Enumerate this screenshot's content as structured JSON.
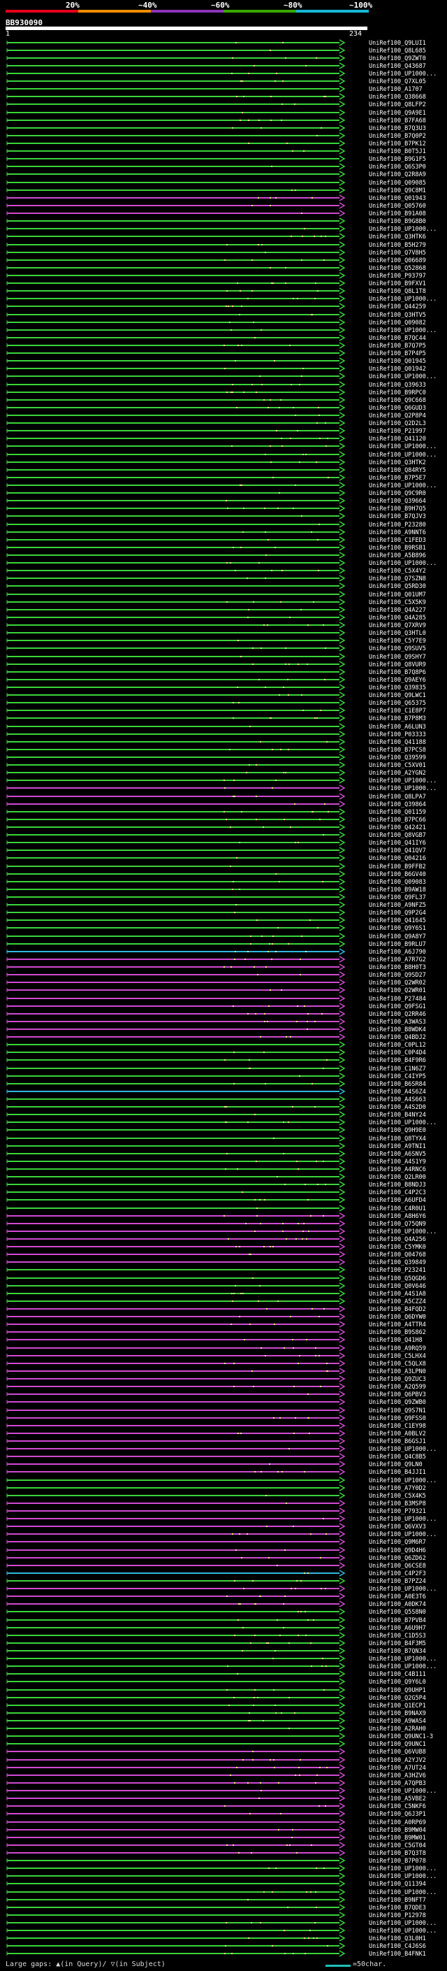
{
  "header": {
    "legend": [
      {
        "label": "20%",
        "color": "#e4001a"
      },
      {
        "label": "~40%",
        "color": "#f08c00"
      },
      {
        "label": "~60%",
        "color": "#8c34b8"
      },
      {
        "label": "~80%",
        "color": "#38a800"
      },
      {
        "label": "~100%",
        "color": "#18b8d8"
      }
    ],
    "query_id": "BB930090",
    "start_pos": "1",
    "end_pos": "234"
  },
  "chart_data": {
    "type": "alignment",
    "title": "BB930090",
    "query_range": [
      1,
      234
    ],
    "series_colors": {
      "green": "#3bd43b",
      "purple": "#d04ad0",
      "cyan": "#30b8e0"
    },
    "hits": [
      {
        "id": "UniRef100_Q9LUI1",
        "color": "green"
      },
      {
        "id": "UniRef100_Q8L685",
        "color": "green"
      },
      {
        "id": "UniRef100_Q9ZWT0",
        "color": "green"
      },
      {
        "id": "UniRef100_Q43687",
        "color": "green"
      },
      {
        "id": "UniRef100_UP1000...",
        "color": "green"
      },
      {
        "id": "UniRef100_Q7XL05",
        "color": "green"
      },
      {
        "id": "UniRef100_A1707",
        "color": "green"
      },
      {
        "id": "UniRef100_Q38668",
        "color": "green"
      },
      {
        "id": "UniRef100_Q8LFP2",
        "color": "green"
      },
      {
        "id": "UniRef100_Q9A9E1",
        "color": "green"
      },
      {
        "id": "UniRef100_B7FA68",
        "color": "green"
      },
      {
        "id": "UniRef100_B7Q3U3",
        "color": "green"
      },
      {
        "id": "UniRef100_B7Q0P2",
        "color": "green"
      },
      {
        "id": "UniRef100_B7PK12",
        "color": "green"
      },
      {
        "id": "UniRef100_B0T5J1",
        "color": "green"
      },
      {
        "id": "UniRef100_B9G1F5",
        "color": "green"
      },
      {
        "id": "UniRef100_Q6S3P0",
        "color": "green"
      },
      {
        "id": "UniRef100_Q2R8A9",
        "color": "green"
      },
      {
        "id": "UniRef100_Q09085",
        "color": "green"
      },
      {
        "id": "UniRef100_Q9C8M1",
        "color": "green"
      },
      {
        "id": "UniRef100_Q01943",
        "color": "purple"
      },
      {
        "id": "UniRef100_Q05760",
        "color": "purple"
      },
      {
        "id": "UniRef100_B91A08",
        "color": "purple"
      },
      {
        "id": "UniRef100_B9G8B0",
        "color": "green"
      },
      {
        "id": "UniRef100_UP1000...",
        "color": "green"
      },
      {
        "id": "UniRef100_Q3HTK6",
        "color": "green"
      },
      {
        "id": "UniRef100_B5H279",
        "color": "green"
      },
      {
        "id": "UniRef100_Q7V8H5",
        "color": "green"
      },
      {
        "id": "UniRef100_Q06689",
        "color": "green"
      },
      {
        "id": "UniRef100_Q52868",
        "color": "green"
      },
      {
        "id": "UniRef100_P93797",
        "color": "green"
      },
      {
        "id": "UniRef100_B9FXV1",
        "color": "green"
      },
      {
        "id": "UniRef100_Q8L1T8",
        "color": "green"
      },
      {
        "id": "UniRef100_UP1000...",
        "color": "green"
      },
      {
        "id": "UniRef100_Q44259",
        "color": "green"
      },
      {
        "id": "UniRef100_Q3HTV5",
        "color": "green"
      },
      {
        "id": "UniRef100_Q09082",
        "color": "green"
      },
      {
        "id": "UniRef100_UP1000...",
        "color": "green"
      },
      {
        "id": "UniRef100_B7QC44",
        "color": "green"
      },
      {
        "id": "UniRef100_B7Q7P5",
        "color": "green"
      },
      {
        "id": "UniRef100_B7P4P5",
        "color": "green"
      },
      {
        "id": "UniRef100_Q01945",
        "color": "green"
      },
      {
        "id": "UniRef100_Q01942",
        "color": "green"
      },
      {
        "id": "UniRef100_UP1000...",
        "color": "green"
      },
      {
        "id": "UniRef100_Q39633",
        "color": "green"
      },
      {
        "id": "UniRef100_B9RPC0",
        "color": "green"
      },
      {
        "id": "UniRef100_Q9C668",
        "color": "green"
      },
      {
        "id": "UniRef100_Q6GUD3",
        "color": "green"
      },
      {
        "id": "UniRef100_Q2P8P4",
        "color": "green"
      },
      {
        "id": "UniRef100_Q2D2L3",
        "color": "green"
      },
      {
        "id": "UniRef100_P21997",
        "color": "green"
      },
      {
        "id": "UniRef100_Q41120",
        "color": "green"
      },
      {
        "id": "UniRef100_UP1000...",
        "color": "green"
      },
      {
        "id": "UniRef100_UP1000...",
        "color": "green"
      },
      {
        "id": "UniRef100_Q3HTK2",
        "color": "green"
      },
      {
        "id": "UniRef100_Q84RY5",
        "color": "green"
      },
      {
        "id": "UniRef100_B7P5E7",
        "color": "green"
      },
      {
        "id": "UniRef100_UP1000...",
        "color": "green"
      },
      {
        "id": "UniRef100_Q9C9R0",
        "color": "green"
      },
      {
        "id": "UniRef100_Q39664",
        "color": "green"
      },
      {
        "id": "UniRef100_B9H7Q5",
        "color": "green"
      },
      {
        "id": "UniRef100_B7QJV3",
        "color": "green"
      },
      {
        "id": "UniRef100_P23280",
        "color": "green"
      },
      {
        "id": "UniRef100_A9NNT6",
        "color": "green"
      },
      {
        "id": "UniRef100_C1FED3",
        "color": "green"
      },
      {
        "id": "UniRef100_B9RSB1",
        "color": "green"
      },
      {
        "id": "UniRef100_A5B896",
        "color": "green"
      },
      {
        "id": "UniRef100_UP1000...",
        "color": "green"
      },
      {
        "id": "UniRef100_C5X4Y2",
        "color": "green"
      },
      {
        "id": "UniRef100_Q7SZN8",
        "color": "green"
      },
      {
        "id": "UniRef100_Q5RD30",
        "color": "green"
      },
      {
        "id": "UniRef100_Q01UM7",
        "color": "green"
      },
      {
        "id": "UniRef100_C5X5K9",
        "color": "green"
      },
      {
        "id": "UniRef100_Q4A227",
        "color": "green"
      },
      {
        "id": "UniRef100_Q4A285",
        "color": "green"
      },
      {
        "id": "UniRef100_Q7XRV9",
        "color": "green"
      },
      {
        "id": "UniRef100_Q3HTL0",
        "color": "green"
      },
      {
        "id": "UniRef100_C5Y7E9",
        "color": "green"
      },
      {
        "id": "UniRef100_Q9SUV5",
        "color": "green"
      },
      {
        "id": "UniRef100_Q9SHY7",
        "color": "green"
      },
      {
        "id": "UniRef100_Q8VUR9",
        "color": "green"
      },
      {
        "id": "UniRef100_B7Q8P6",
        "color": "green"
      },
      {
        "id": "UniRef100_Q9AEY6",
        "color": "green"
      },
      {
        "id": "UniRef100_Q39835",
        "color": "green"
      },
      {
        "id": "UniRef100_Q9LWC1",
        "color": "green"
      },
      {
        "id": "UniRef100_Q65375",
        "color": "green"
      },
      {
        "id": "UniRef100_C1E8P7",
        "color": "green"
      },
      {
        "id": "UniRef100_B7P8M3",
        "color": "green"
      },
      {
        "id": "UniRef100_A6LUN3",
        "color": "green"
      },
      {
        "id": "UniRef100_P03333",
        "color": "green"
      },
      {
        "id": "UniRef100_Q41188",
        "color": "green"
      },
      {
        "id": "UniRef100_B7PCS8",
        "color": "green"
      },
      {
        "id": "UniRef100_Q39599",
        "color": "green"
      },
      {
        "id": "UniRef100_C5XV01",
        "color": "green"
      },
      {
        "id": "UniRef100_A2YGN2",
        "color": "green"
      },
      {
        "id": "UniRef100_UP1000...",
        "color": "green"
      },
      {
        "id": "UniRef100_UP1000...",
        "color": "purple"
      },
      {
        "id": "UniRef100_Q8LPA7",
        "color": "purple"
      },
      {
        "id": "UniRef100_Q39864",
        "color": "purple"
      },
      {
        "id": "UniRef100_Q01159",
        "color": "green"
      },
      {
        "id": "UniRef100_B7PC66",
        "color": "green"
      },
      {
        "id": "UniRef100_Q42421",
        "color": "green"
      },
      {
        "id": "UniRef100_Q8VGB7",
        "color": "green"
      },
      {
        "id": "UniRef100_Q41IY6",
        "color": "green"
      },
      {
        "id": "UniRef100_Q41QV7",
        "color": "green"
      },
      {
        "id": "UniRef100_Q04216",
        "color": "green"
      },
      {
        "id": "UniRef100_B9FFB2",
        "color": "green"
      },
      {
        "id": "UniRef100_B6GV40",
        "color": "green"
      },
      {
        "id": "UniRef100_Q09083",
        "color": "green"
      },
      {
        "id": "UniRef100_B9AW18",
        "color": "green"
      },
      {
        "id": "UniRef100_Q9FL37",
        "color": "green"
      },
      {
        "id": "UniRef100_A9NFZ5",
        "color": "green"
      },
      {
        "id": "UniRef100_Q9P2G4",
        "color": "green"
      },
      {
        "id": "UniRef100_Q41645",
        "color": "green"
      },
      {
        "id": "UniRef100_Q9Y6S1",
        "color": "green"
      },
      {
        "id": "UniRef100_Q9A8Y7",
        "color": "green"
      },
      {
        "id": "UniRef100_B9RLU7",
        "color": "green"
      },
      {
        "id": "UniRef100_A6J790",
        "color": "cyan"
      },
      {
        "id": "UniRef100_A7R7G2",
        "color": "purple"
      },
      {
        "id": "UniRef100_B8H0T3",
        "color": "purple"
      },
      {
        "id": "UniRef100_Q9SD27",
        "color": "purple"
      },
      {
        "id": "UniRef100_Q2WR02",
        "color": "purple"
      },
      {
        "id": "UniRef100_Q2WR01",
        "color": "purple"
      },
      {
        "id": "UniRef100_P27484",
        "color": "purple"
      },
      {
        "id": "UniRef100_Q9FSG1",
        "color": "purple"
      },
      {
        "id": "UniRef100_Q2RR46",
        "color": "purple"
      },
      {
        "id": "UniRef100_A3WAS3",
        "color": "purple"
      },
      {
        "id": "UniRef100_B8WDK4",
        "color": "purple"
      },
      {
        "id": "UniRef100_Q4BDJ2",
        "color": "purple"
      },
      {
        "id": "UniRef100_C0PL12",
        "color": "green"
      },
      {
        "id": "UniRef100_C0P4D4",
        "color": "green"
      },
      {
        "id": "UniRef100_B4F9R6",
        "color": "green"
      },
      {
        "id": "UniRef100_C1N6Z7",
        "color": "green"
      },
      {
        "id": "UniRef100_C4IYP5",
        "color": "green"
      },
      {
        "id": "UniRef100_B6SR84",
        "color": "green"
      },
      {
        "id": "UniRef100_A4S6Z4",
        "color": "cyan"
      },
      {
        "id": "UniRef100_A4S663",
        "color": "green"
      },
      {
        "id": "UniRef100_A4S2D0",
        "color": "green"
      },
      {
        "id": "UniRef100_B4NY24",
        "color": "green"
      },
      {
        "id": "UniRef100_UP1000...",
        "color": "green"
      },
      {
        "id": "UniRef100_Q9H9E0",
        "color": "green"
      },
      {
        "id": "UniRef100_Q8TYX4",
        "color": "green"
      },
      {
        "id": "UniRef100_A9TNI1",
        "color": "green"
      },
      {
        "id": "UniRef100_A6SNV5",
        "color": "green"
      },
      {
        "id": "UniRef100_A4S1Y9",
        "color": "green"
      },
      {
        "id": "UniRef100_A4RNC6",
        "color": "green"
      },
      {
        "id": "UniRef100_Q2LR00",
        "color": "green"
      },
      {
        "id": "UniRef100_B8NDJ3",
        "color": "green"
      },
      {
        "id": "UniRef100_C4P2C3",
        "color": "green"
      },
      {
        "id": "UniRef100_A6UFD4",
        "color": "green"
      },
      {
        "id": "UniRef100_C4R0U1",
        "color": "green"
      },
      {
        "id": "UniRef100_A8H6Y6",
        "color": "purple"
      },
      {
        "id": "UniRef100_Q75QN9",
        "color": "purple"
      },
      {
        "id": "UniRef100_UP1000...",
        "color": "purple"
      },
      {
        "id": "UniRef100_Q4A256",
        "color": "purple"
      },
      {
        "id": "UniRef100_C5YMK0",
        "color": "purple"
      },
      {
        "id": "UniRef100_Q04768",
        "color": "purple"
      },
      {
        "id": "UniRef100_Q39849",
        "color": "purple"
      },
      {
        "id": "UniRef100_P23241",
        "color": "green"
      },
      {
        "id": "UniRef100_Q5QGD6",
        "color": "green"
      },
      {
        "id": "UniRef100_Q0V646",
        "color": "green"
      },
      {
        "id": "UniRef100_A4S1A8",
        "color": "green"
      },
      {
        "id": "UniRef100_A5CZZ4",
        "color": "green"
      },
      {
        "id": "UniRef100_B4FQD2",
        "color": "purple"
      },
      {
        "id": "UniRef100_Q6DYW0",
        "color": "purple"
      },
      {
        "id": "UniRef100_A4TTR4",
        "color": "purple"
      },
      {
        "id": "UniRef100_B9S862",
        "color": "purple"
      },
      {
        "id": "UniRef100_Q41H8",
        "color": "purple"
      },
      {
        "id": "UniRef100_A9RQ59",
        "color": "purple"
      },
      {
        "id": "UniRef100_C5LHX4",
        "color": "purple"
      },
      {
        "id": "UniRef100_C5QLX8",
        "color": "purple"
      },
      {
        "id": "UniRef100_A3LPN0",
        "color": "purple"
      },
      {
        "id": "UniRef100_Q9ZUC3",
        "color": "purple"
      },
      {
        "id": "UniRef100_A2Q599",
        "color": "purple"
      },
      {
        "id": "UniRef100_Q6PBV3",
        "color": "purple"
      },
      {
        "id": "UniRef100_Q9ZWB0",
        "color": "purple"
      },
      {
        "id": "UniRef100_Q9S7N1",
        "color": "purple"
      },
      {
        "id": "UniRef100_Q9FSS0",
        "color": "purple"
      },
      {
        "id": "UniRef100_C1EY98",
        "color": "purple"
      },
      {
        "id": "UniRef100_A0BLV2",
        "color": "purple"
      },
      {
        "id": "UniRef100_B6GSJ1",
        "color": "purple"
      },
      {
        "id": "UniRef100_UP1000...",
        "color": "purple"
      },
      {
        "id": "UniRef100_Q4C8B5",
        "color": "purple"
      },
      {
        "id": "UniRef100_Q9LN0",
        "color": "purple"
      },
      {
        "id": "UniRef100_B4JJI1",
        "color": "purple"
      },
      {
        "id": "UniRef100_UP1000...",
        "color": "green"
      },
      {
        "id": "UniRef100_A7Y0D2",
        "color": "green"
      },
      {
        "id": "UniRef100_C5X4K5",
        "color": "green"
      },
      {
        "id": "UniRef100_B3MSP8",
        "color": "purple"
      },
      {
        "id": "UniRef100_P79321",
        "color": "purple"
      },
      {
        "id": "UniRef100_UP1000...",
        "color": "purple"
      },
      {
        "id": "UniRef100_Q6VXV3",
        "color": "purple"
      },
      {
        "id": "UniRef100_UP1000...",
        "color": "purple"
      },
      {
        "id": "UniRef100_Q9M6R7",
        "color": "purple"
      },
      {
        "id": "UniRef100_Q9D4H6",
        "color": "purple"
      },
      {
        "id": "UniRef100_Q6ZD62",
        "color": "purple"
      },
      {
        "id": "UniRef100_Q6CSE8",
        "color": "purple"
      },
      {
        "id": "UniRef100_C4P2F3",
        "color": "cyan"
      },
      {
        "id": "UniRef100_B7PZ24",
        "color": "green"
      },
      {
        "id": "UniRef100_UP1000...",
        "color": "purple"
      },
      {
        "id": "UniRef100_A0E3T6",
        "color": "purple"
      },
      {
        "id": "UniRef100_A0DK74",
        "color": "purple"
      },
      {
        "id": "UniRef100_Q5S8N0",
        "color": "green"
      },
      {
        "id": "UniRef100_B7PVB4",
        "color": "green"
      },
      {
        "id": "UniRef100_A6U9H7",
        "color": "green"
      },
      {
        "id": "UniRef100_C1D5S3",
        "color": "green"
      },
      {
        "id": "UniRef100_B4F3M5",
        "color": "green"
      },
      {
        "id": "UniRef100_B7QN34",
        "color": "green"
      },
      {
        "id": "UniRef100_UP1000...",
        "color": "green"
      },
      {
        "id": "UniRef100_UP1000...",
        "color": "green"
      },
      {
        "id": "UniRef100_C4B111",
        "color": "green"
      },
      {
        "id": "UniRef100_Q9Y6L0",
        "color": "green"
      },
      {
        "id": "UniRef100_Q9UHP1",
        "color": "green"
      },
      {
        "id": "UniRef100_Q2G5P4",
        "color": "green"
      },
      {
        "id": "UniRef100_Q1ECP1",
        "color": "green"
      },
      {
        "id": "UniRef100_B9NAX9",
        "color": "green"
      },
      {
        "id": "UniRef100_A9WAS4",
        "color": "green"
      },
      {
        "id": "UniRef100_A2RAH0",
        "color": "green"
      },
      {
        "id": "UniRef100_Q9UNC1-3",
        "color": "green"
      },
      {
        "id": "UniRef100_Q9UNC1",
        "color": "green"
      },
      {
        "id": "UniRef100_Q6VUB8",
        "color": "purple"
      },
      {
        "id": "UniRef100_A2YJV2",
        "color": "purple"
      },
      {
        "id": "UniRef100_A7UT24",
        "color": "purple"
      },
      {
        "id": "UniRef100_A3HZV6",
        "color": "purple"
      },
      {
        "id": "UniRef100_A7QPB3",
        "color": "purple"
      },
      {
        "id": "UniRef100_UP1000...",
        "color": "purple"
      },
      {
        "id": "UniRef100_A5VBE2",
        "color": "purple"
      },
      {
        "id": "UniRef100_C5NKF6",
        "color": "purple"
      },
      {
        "id": "UniRef100_Q6J3P1",
        "color": "purple"
      },
      {
        "id": "UniRef100_A0RP69",
        "color": "purple"
      },
      {
        "id": "UniRef100_B9MW04",
        "color": "purple"
      },
      {
        "id": "UniRef100_B9MW01",
        "color": "purple"
      },
      {
        "id": "UniRef100_C5GT04",
        "color": "purple"
      },
      {
        "id": "UniRef100_B7Q3T8",
        "color": "purple"
      },
      {
        "id": "UniRef100_B7P078",
        "color": "green"
      },
      {
        "id": "UniRef100_UP1000...",
        "color": "green"
      },
      {
        "id": "UniRef100_UP1000...",
        "color": "green"
      },
      {
        "id": "UniRef100_Q11394",
        "color": "green"
      },
      {
        "id": "UniRef100_UP1000...",
        "color": "green"
      },
      {
        "id": "UniRef100_B9NFT7",
        "color": "green"
      },
      {
        "id": "UniRef100_B7QDE3",
        "color": "green"
      },
      {
        "id": "UniRef100_P12978",
        "color": "green"
      },
      {
        "id": "UniRef100_UP1000...",
        "color": "green"
      },
      {
        "id": "UniRef100_UP1000...",
        "color": "green"
      },
      {
        "id": "UniRef100_Q3L0H1",
        "color": "green"
      },
      {
        "id": "UniRef100_C4J6S6",
        "color": "green"
      },
      {
        "id": "UniRef100_B4FNK1",
        "color": "green"
      }
    ]
  },
  "footer": {
    "large_gaps_label": "Large gaps: ▲(in Query)/ ▽(in Subject)",
    "scale_label": "=50char."
  }
}
